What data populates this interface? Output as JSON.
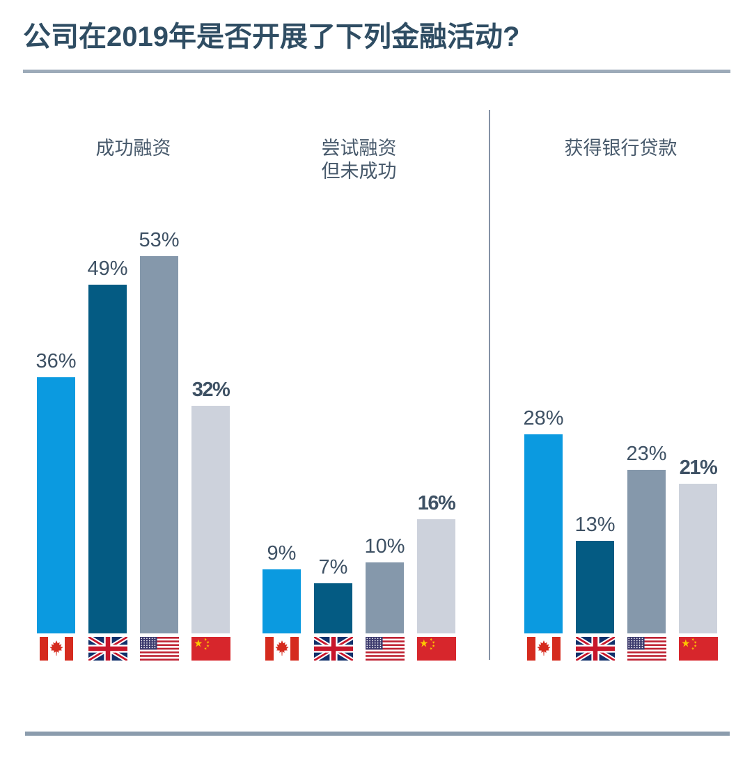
{
  "title": "公司在2019年是否开展了下列金融活动?",
  "chart_data": {
    "type": "bar",
    "title": "公司在2019年是否开展了下列金融活动?",
    "unit": "percent",
    "value_suffix": "%",
    "axes_visible": false,
    "grid": false,
    "ylim": [
      0,
      60
    ],
    "legend_position": "flags-below-bars",
    "categories": [
      "Canada",
      "United Kingdom",
      "United States",
      "China"
    ],
    "legend": [
      {
        "name": "Canada",
        "icon": "canada-flag-icon",
        "color": "#0b9ae0",
        "emphasized_label": false
      },
      {
        "name": "United Kingdom",
        "icon": "uk-flag-icon",
        "color": "#045b83",
        "emphasized_label": false
      },
      {
        "name": "United States",
        "icon": "usa-flag-icon",
        "color": "#8598ab",
        "emphasized_label": false
      },
      {
        "name": "China",
        "icon": "china-flag-icon",
        "color": "#cdd2dc",
        "emphasized_label": true
      }
    ],
    "groups": [
      {
        "label": "成功融资",
        "values": [
          36,
          49,
          53,
          32
        ],
        "value_labels": [
          "36%",
          "49%",
          "53%",
          "32%"
        ]
      },
      {
        "label": "尝试融资\n但未成功",
        "values": [
          9,
          7,
          10,
          16
        ],
        "value_labels": [
          "9%",
          "7%",
          "10%",
          "16%"
        ]
      },
      {
        "label": "获得银行贷款",
        "values": [
          28,
          13,
          23,
          21
        ],
        "value_labels": [
          "28%",
          "13%",
          "23%",
          "21%"
        ]
      }
    ]
  },
  "colors": {
    "background": "#ffffff",
    "title_text": "#2f4d63",
    "group_label_text": "#47596b",
    "value_label_text": "#3e5164",
    "title_rule": "#9dabb9",
    "group_divider": "#8492a5",
    "bottom_rule": "#8b9cad",
    "bar_canada": "#0b9ae0",
    "bar_uk": "#045b83",
    "bar_usa": "#8598ab",
    "bar_china": "#cdd2dc"
  }
}
